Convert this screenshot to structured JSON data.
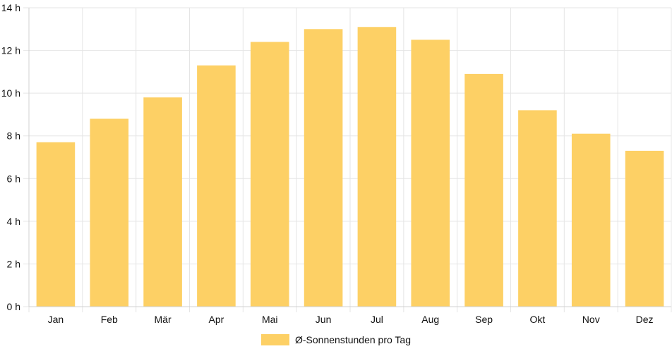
{
  "chart_data": {
    "type": "bar",
    "categories": [
      "Jan",
      "Feb",
      "Mär",
      "Apr",
      "Mai",
      "Jun",
      "Jul",
      "Aug",
      "Sep",
      "Okt",
      "Nov",
      "Dez"
    ],
    "series": [
      {
        "name": "Ø-Sonnenstunden pro Tag",
        "values": [
          7.7,
          8.8,
          9.8,
          11.3,
          12.4,
          13.0,
          13.1,
          12.5,
          10.9,
          9.2,
          8.1,
          7.3
        ]
      }
    ],
    "ylim": [
      0,
      14
    ],
    "yticks": [
      "0 h",
      "2 h",
      "4 h",
      "6 h",
      "8 h",
      "10 h",
      "12 h",
      "14 h"
    ],
    "grid": true,
    "legend_position": "bottom",
    "color": "#fdd065"
  }
}
